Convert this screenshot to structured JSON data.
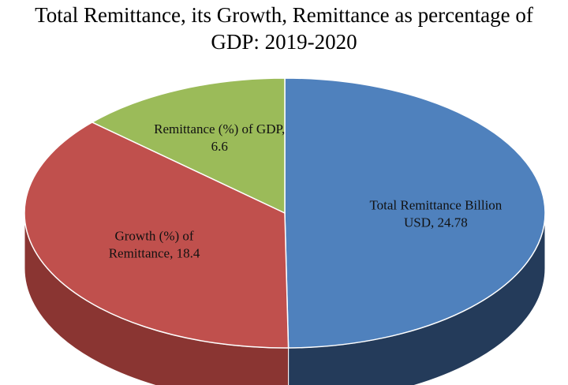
{
  "chart_data": {
    "type": "pie",
    "title_lines": [
      "Total Remittance, its Growth, Remittance as percentage of",
      "GDP: 2019-2020"
    ],
    "slices": [
      {
        "name": "Total Remittance Billion USD",
        "value": 24.78,
        "label_lines": [
          "Total Remittance Billion",
          "USD, 24.78"
        ],
        "color": "#4f81bd",
        "side_color": "#243b5a"
      },
      {
        "name": "Growth (%) of Remittance",
        "value": 18.4,
        "label_lines": [
          "Growth (%) of",
          "Remittance, 18.4"
        ],
        "color": "#c0504d",
        "side_color": "#8a3532"
      },
      {
        "name": "Remittance (%) of GDP",
        "value": 6.6,
        "label_lines": [
          "Remittance (%) of GDP,",
          "6.6"
        ],
        "color": "#9bbb59",
        "side_color": "#6b8a3a"
      }
    ],
    "legend": "none"
  }
}
